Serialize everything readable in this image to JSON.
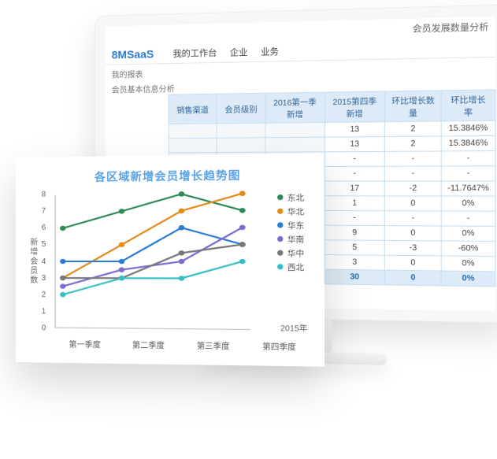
{
  "page_header": "会员发展数量分析",
  "logo_text": "8MSaaS",
  "nav": {
    "workbench": "我的工作台",
    "enterprise": "企业",
    "business": "业务"
  },
  "sidebar": {
    "item0": "我的报表",
    "item1": "会员基本信息分析"
  },
  "table": {
    "headers": {
      "channel": "销售渠道",
      "level": "会员级别",
      "q1_2016": "2016第一季新增",
      "q4_2015": "2015第四季新增",
      "delta": "环比增长数量",
      "rate": "环比增长率"
    },
    "rows": [
      {
        "v2015q4": "13",
        "delta": "2",
        "rate": "15.3846%"
      },
      {
        "v2015q4": "13",
        "delta": "2",
        "rate": "15.3846%"
      },
      {
        "v2015q4": "-",
        "delta": "-",
        "rate": "-"
      },
      {
        "v2015q4": "-",
        "delta": "-",
        "rate": "-"
      },
      {
        "v2015q4": "17",
        "delta": "-2",
        "rate": "-11.7647%"
      },
      {
        "v2015q4": "1",
        "delta": "0",
        "rate": "0%"
      },
      {
        "v2015q4": "-",
        "delta": "-",
        "rate": "-"
      },
      {
        "v2015q4": "9",
        "delta": "0",
        "rate": "0%"
      },
      {
        "v2015q4": "5",
        "delta": "-3",
        "rate": "-60%"
      },
      {
        "v2015q4": "3",
        "delta": "0",
        "rate": "0%"
      }
    ],
    "total": {
      "v2015q4": "30",
      "delta": "0",
      "rate": "0%"
    }
  },
  "chart": {
    "title": "各区域新增会员增长趋势图",
    "type": "line",
    "y_label": "新增会员数",
    "x_right_label": "2015年",
    "categories": [
      "第一季度",
      "第二季度",
      "第三季度",
      "第四季度"
    ],
    "y_ticks": [
      "0",
      "1",
      "2",
      "3",
      "4",
      "5",
      "6",
      "7",
      "8"
    ],
    "ylim": [
      0,
      8
    ],
    "series": [
      {
        "name": "东北",
        "color": "#2e8b57",
        "values": [
          6,
          7,
          8,
          7
        ]
      },
      {
        "name": "华北",
        "color": "#e28b17",
        "values": [
          3,
          5,
          7,
          8
        ]
      },
      {
        "name": "华东",
        "color": "#2a7bd6",
        "values": [
          4,
          4,
          6,
          5
        ]
      },
      {
        "name": "华南",
        "color": "#7b6bd4",
        "values": [
          2.5,
          3.5,
          4,
          6
        ]
      },
      {
        "name": "华中",
        "color": "#777777",
        "values": [
          3,
          3,
          4.5,
          5
        ]
      },
      {
        "name": "西北",
        "color": "#35bfc5",
        "values": [
          2,
          3,
          3,
          4
        ]
      }
    ],
    "background_color": "#ffffff",
    "axis_color": "#bcbcbc",
    "line_width": 2,
    "marker_radius": 3
  }
}
